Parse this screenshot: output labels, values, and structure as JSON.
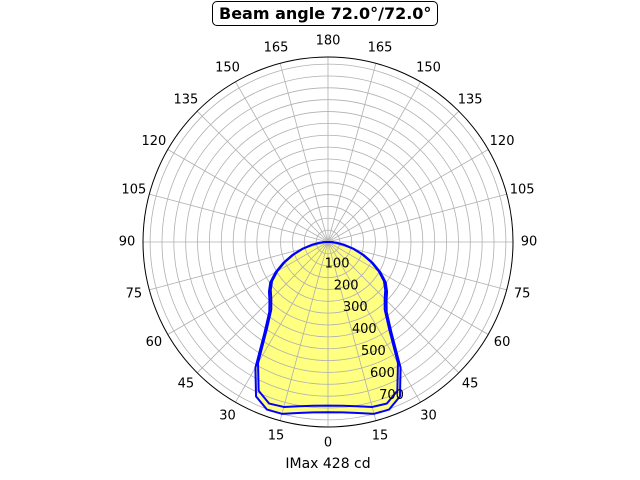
{
  "chart_data": {
    "type": "polar-line",
    "title": "Beam angle 72.0°/72.0°",
    "xlabel": "IMax 428 cd",
    "angle_tick_labels": [
      "0",
      "15",
      "30",
      "45",
      "60",
      "75",
      "90",
      "105",
      "120",
      "135",
      "150",
      "165",
      "180",
      "165",
      "150",
      "135",
      "120",
      "105",
      "90",
      "75",
      "60",
      "45",
      "30",
      "15"
    ],
    "radial_tick_labels": [
      "100",
      "200",
      "300",
      "400",
      "500",
      "600",
      "700"
    ],
    "rlim": [
      0,
      780
    ],
    "grid": true,
    "colors": {
      "line": "#0000ff",
      "fill": "#ffff80",
      "grid": "#b0b0b0"
    },
    "series": [
      {
        "angles": [
          0,
          5,
          10,
          15,
          20,
          25,
          30,
          35,
          40,
          45,
          50,
          55,
          60,
          65,
          70,
          75,
          80,
          85,
          90
        ],
        "values": [
          718,
          721,
          732,
          750,
          752,
          718,
          612,
          467,
          385,
          349,
          325,
          297,
          255,
          208,
          160,
          113,
          70,
          35,
          14
        ]
      },
      {
        "angles": [
          0,
          5,
          10,
          15,
          20,
          25,
          30,
          35,
          40,
          45,
          50,
          55,
          60,
          65,
          70,
          75,
          80,
          85,
          90
        ],
        "values": [
          690,
          693,
          703,
          720,
          725,
          692,
          590,
          450,
          372,
          338,
          315,
          288,
          247,
          202,
          155,
          110,
          68,
          34,
          14
        ]
      }
    ]
  }
}
